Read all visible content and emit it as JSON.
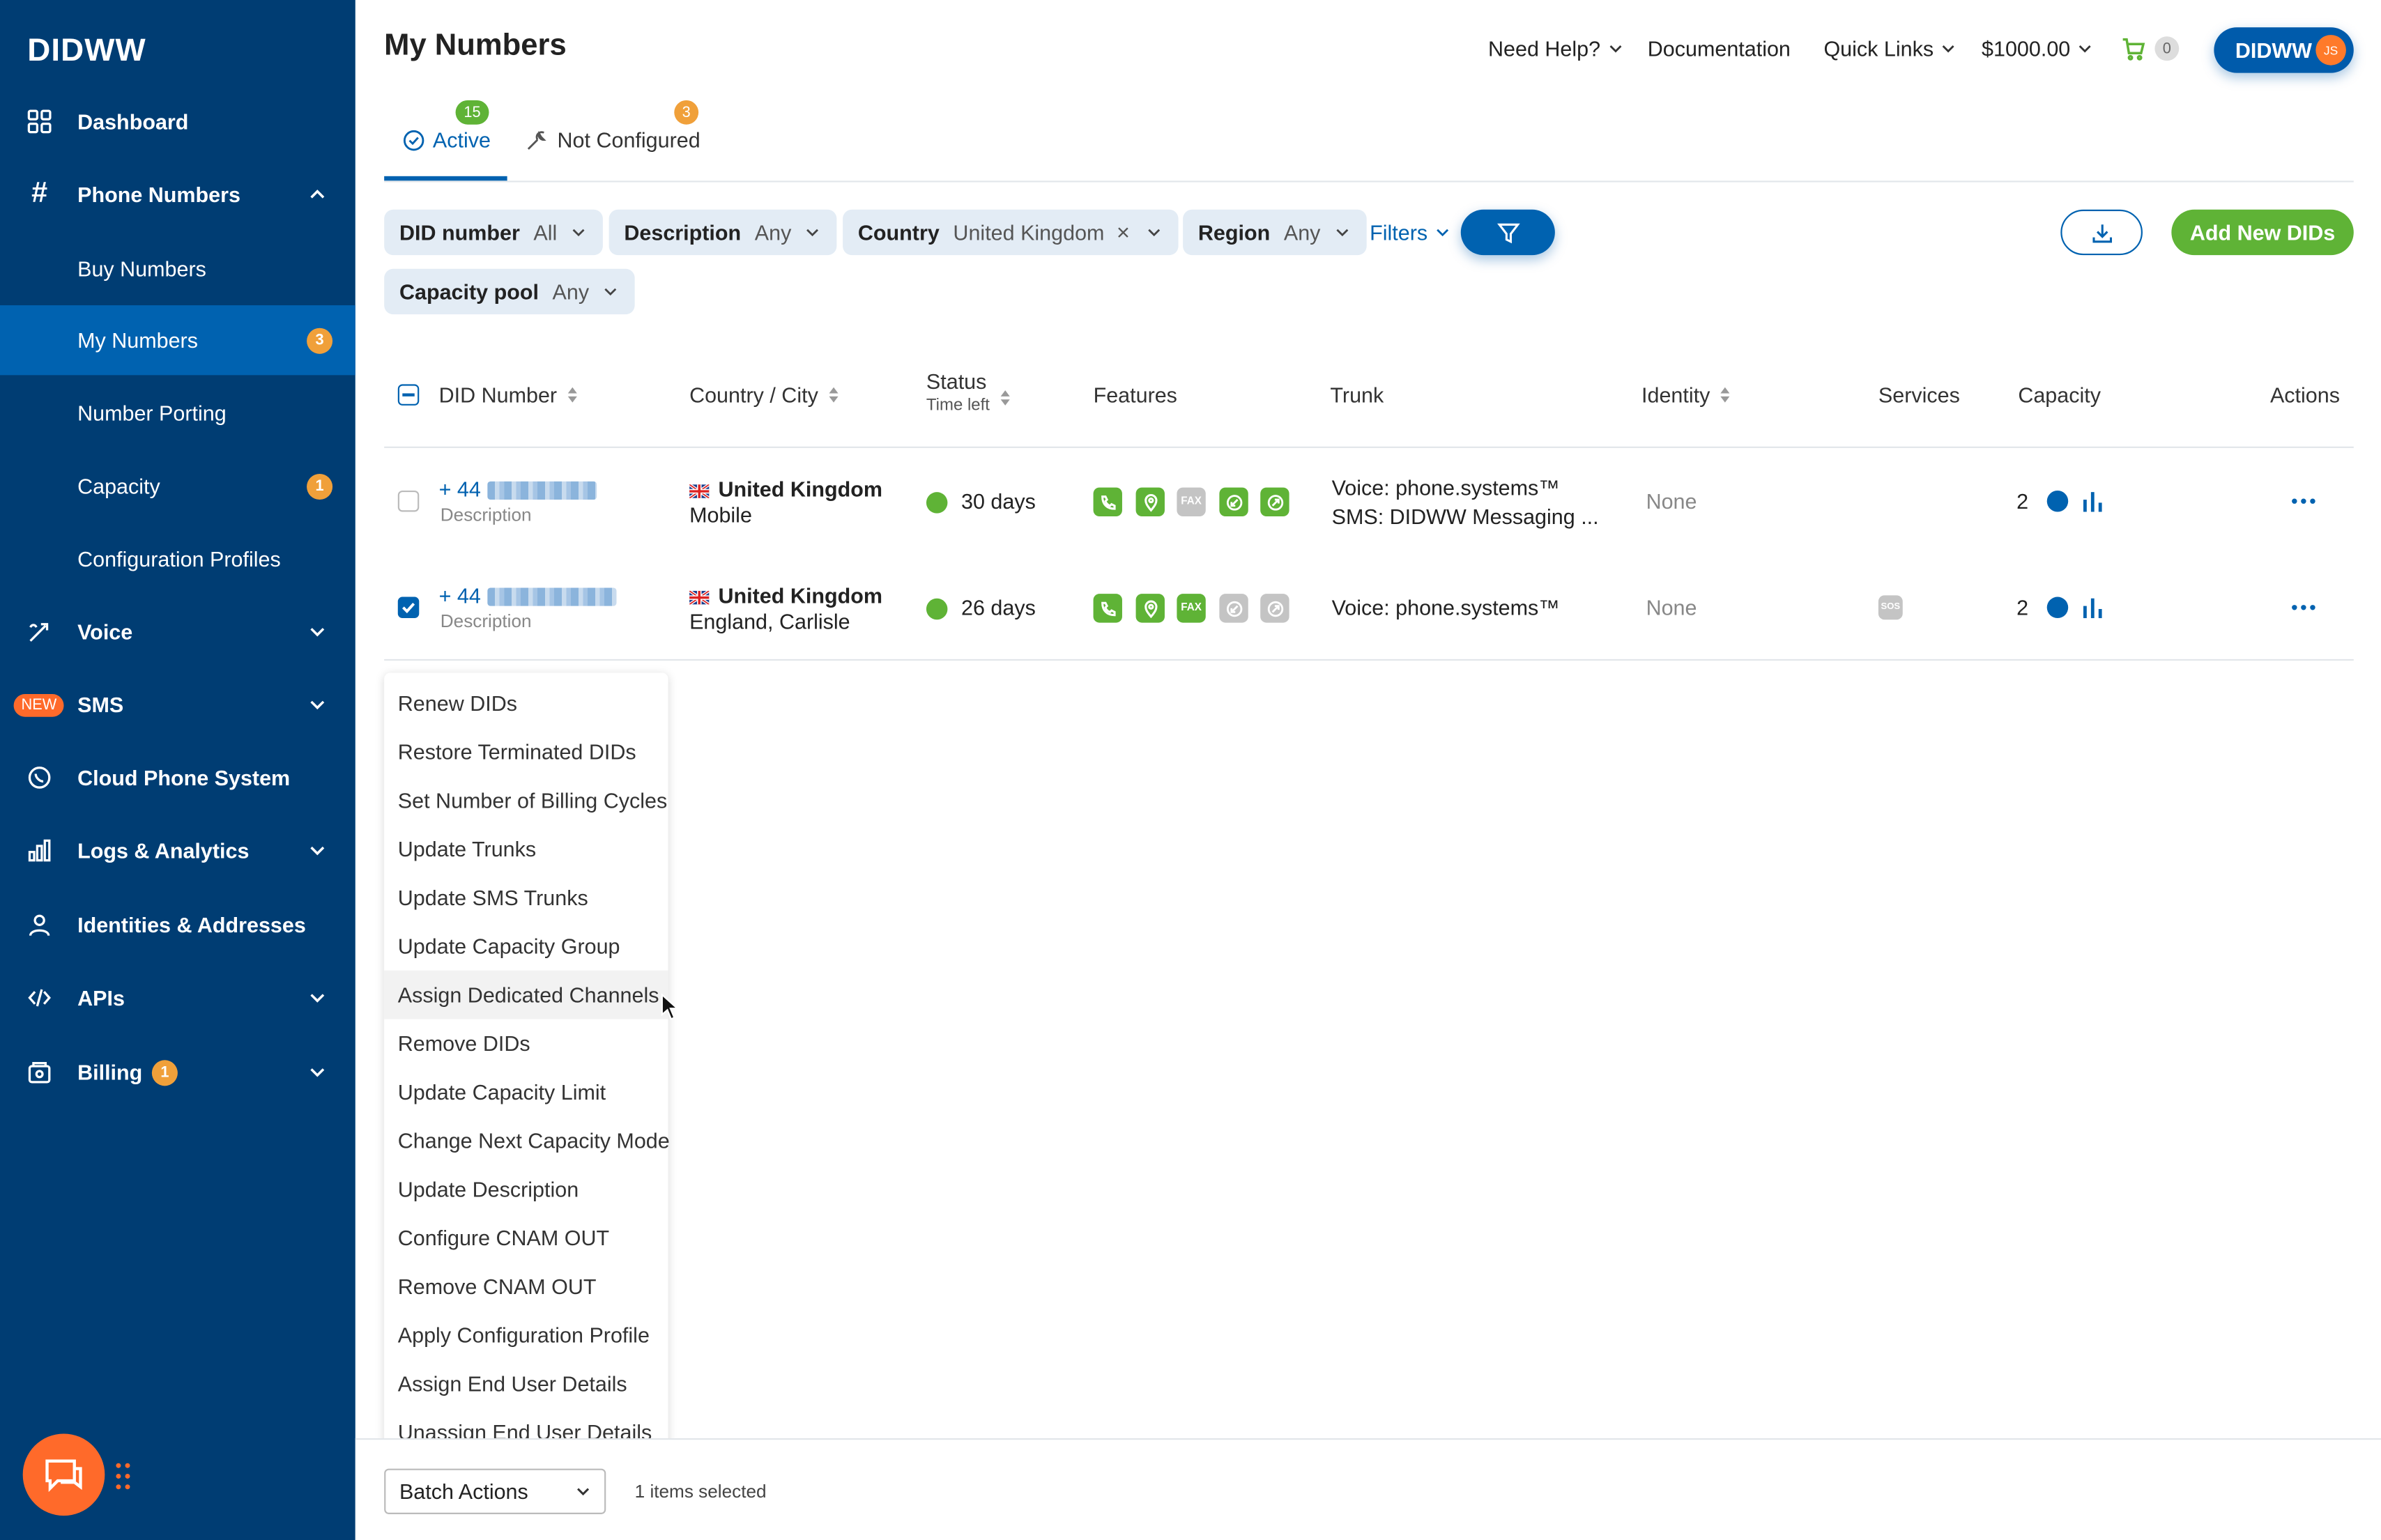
{
  "brand": {
    "logo_text": "DIDWW",
    "accent": "#0062b0",
    "sidebar_bg": "#003d73",
    "green": "#5fb336",
    "orange": "#ff6a2a"
  },
  "sidebar": {
    "dashboard": "Dashboard",
    "phone_numbers": "Phone Numbers",
    "sub": {
      "buy": "Buy Numbers",
      "my": "My Numbers",
      "my_badge": "3",
      "porting": "Number Porting",
      "capacity": "Capacity",
      "capacity_badge": "1",
      "profiles": "Configuration Profiles"
    },
    "voice": "Voice",
    "sms_new": "NEW",
    "sms": "SMS",
    "cloud": "Cloud Phone System",
    "logs": "Logs & Analytics",
    "identities": "Identities & Addresses",
    "apis": "APIs",
    "billing": "Billing",
    "billing_badge": "1"
  },
  "header": {
    "title": "My Numbers",
    "need_help": "Need Help?",
    "documentation": "Documentation",
    "quick_links": "Quick Links",
    "balance": "$1000.00",
    "cart_count": "0",
    "user": "DIDWW",
    "user_initials": "JS"
  },
  "tabs": {
    "active_label": "Active",
    "active_count": "15",
    "not_configured_label": "Not Configured",
    "not_configured_count": "3"
  },
  "filters": {
    "did_label": "DID number",
    "did_value": "All",
    "desc_label": "Description",
    "desc_value": "Any",
    "country_label": "Country",
    "country_value": "United Kingdom",
    "region_label": "Region",
    "region_value": "Any",
    "filters_link": "Filters",
    "capacity_pool_label": "Capacity pool",
    "capacity_pool_value": "Any",
    "add_button": "Add New DIDs"
  },
  "table": {
    "headers": {
      "did": "DID Number",
      "country": "Country / City",
      "status": "Status",
      "time_left": "Time left",
      "features": "Features",
      "trunk": "Trunk",
      "identity": "Identity",
      "services": "Services",
      "capacity": "Capacity",
      "actions": "Actions"
    },
    "rows": [
      {
        "prefix": "+ 44",
        "desc": "Description",
        "country": "United Kingdom",
        "city": "Mobile",
        "days": "30 days",
        "trunk1": "Voice: phone.systems™",
        "trunk2": "SMS: DIDWW Messaging ...",
        "identity": "None",
        "capacity": "2",
        "checked": false
      },
      {
        "prefix": "+ 44",
        "desc": "Description",
        "country": "United Kingdom",
        "city": "England, Carlisle",
        "days": "26 days",
        "trunk1": "Voice: phone.systems™",
        "trunk2": "",
        "identity": "None",
        "service": "SOS",
        "capacity": "2",
        "checked": true
      }
    ],
    "feature_fax_label": "FAX"
  },
  "batch_menu": {
    "items": [
      "Renew DIDs",
      "Restore Terminated DIDs",
      "Set Number of Billing Cycles",
      "Update Trunks",
      "Update SMS Trunks",
      "Update Capacity Group",
      "Assign Dedicated Channels",
      "Remove DIDs",
      "Update Capacity Limit",
      "Change Next Capacity Mode",
      "Update Description",
      "Configure CNAM OUT",
      "Remove CNAM OUT",
      "Apply Configuration Profile",
      "Assign End User Details",
      "Unassign End User Details"
    ],
    "hovered": "Assign Dedicated Channels"
  },
  "bottom": {
    "batch_label": "Batch Actions",
    "selected": "1 items selected"
  }
}
